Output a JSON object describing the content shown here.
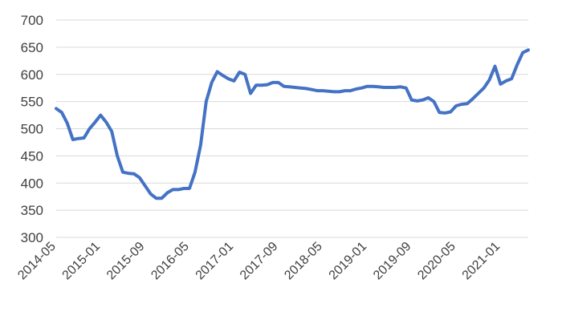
{
  "chart_data": {
    "type": "line",
    "title": "",
    "xlabel": "",
    "ylabel": "",
    "ylim": [
      300,
      700
    ],
    "yticks": [
      300,
      350,
      400,
      450,
      500,
      550,
      600,
      650,
      700
    ],
    "xticks": [
      "2014-05",
      "2015-01",
      "2015-09",
      "2016-05",
      "2017-01",
      "2017-09",
      "2018-05",
      "2019-01",
      "2019-09",
      "2020-05",
      "2021-01"
    ],
    "xlim": [
      "2014-05",
      "2021-06"
    ],
    "grid": "horizontal",
    "legend": "none",
    "colors": {
      "line": "#4472C4",
      "grid": "#D9D9D9",
      "text": "#404040"
    },
    "series": [
      {
        "x": [
          "2014-05",
          "2014-06",
          "2014-07",
          "2014-08",
          "2014-09",
          "2014-10",
          "2014-11",
          "2014-12",
          "2015-01",
          "2015-02",
          "2015-03",
          "2015-04",
          "2015-05",
          "2015-06",
          "2015-07",
          "2015-08",
          "2015-09",
          "2015-10",
          "2015-11",
          "2015-12",
          "2016-01",
          "2016-02",
          "2016-03",
          "2016-04",
          "2016-05",
          "2016-06",
          "2016-07",
          "2016-08",
          "2016-09",
          "2016-10",
          "2016-11",
          "2016-12",
          "2017-01",
          "2017-02",
          "2017-03",
          "2017-04",
          "2017-05",
          "2017-06",
          "2017-07",
          "2017-08",
          "2017-09",
          "2017-10",
          "2017-11",
          "2017-12",
          "2018-01",
          "2018-02",
          "2018-03",
          "2018-04",
          "2018-05",
          "2018-06",
          "2018-07",
          "2018-08",
          "2018-09",
          "2018-10",
          "2018-11",
          "2018-12",
          "2019-01",
          "2019-02",
          "2019-03",
          "2019-04",
          "2019-05",
          "2019-06",
          "2019-07",
          "2019-08",
          "2019-09",
          "2019-10",
          "2019-11",
          "2019-12",
          "2020-01",
          "2020-02",
          "2020-03",
          "2020-04",
          "2020-05",
          "2020-06",
          "2020-07",
          "2020-08",
          "2020-09",
          "2020-10",
          "2020-11",
          "2020-12",
          "2021-01",
          "2021-02",
          "2021-03",
          "2021-04",
          "2021-05",
          "2021-06"
        ],
        "values": [
          537,
          530,
          510,
          480,
          482,
          483,
          500,
          512,
          525,
          512,
          495,
          450,
          420,
          418,
          417,
          410,
          395,
          380,
          372,
          372,
          382,
          388,
          388,
          390,
          390,
          420,
          470,
          550,
          585,
          605,
          598,
          592,
          588,
          604,
          600,
          565,
          580,
          580,
          581,
          585,
          585,
          578,
          577,
          576,
          575,
          574,
          572,
          570,
          570,
          569,
          568,
          568,
          570,
          570,
          573,
          575,
          578,
          578,
          577,
          576,
          576,
          576,
          577,
          575,
          553,
          551,
          553,
          557,
          550,
          530,
          529,
          531,
          542,
          545,
          546,
          555,
          565,
          575,
          590,
          615,
          582,
          588,
          592,
          618,
          640,
          645
        ]
      }
    ]
  }
}
